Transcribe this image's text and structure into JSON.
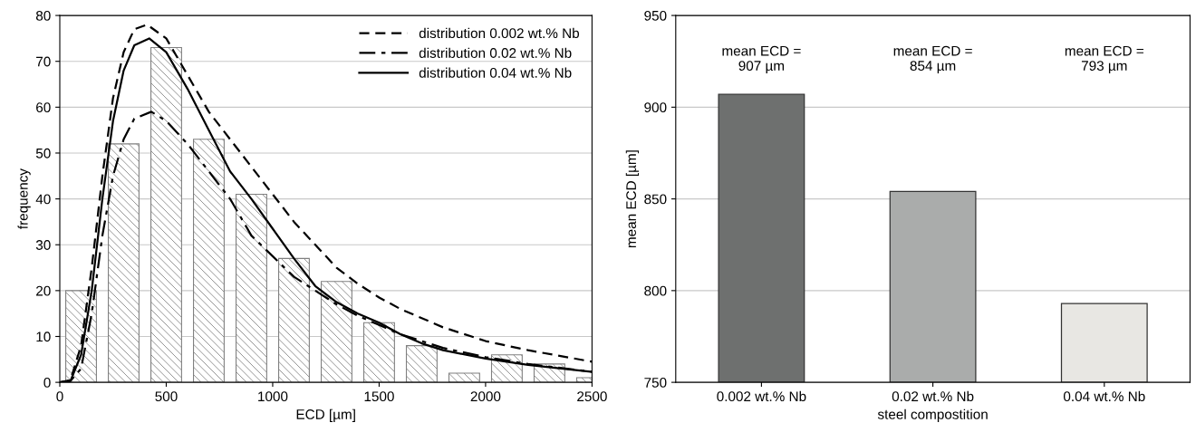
{
  "chart_data": [
    {
      "type": "histogram",
      "xlabel": "ECD [µm]",
      "ylabel": "frequency",
      "xlim": [
        0,
        2500
      ],
      "ylim": [
        0,
        80
      ],
      "xticks": [
        0,
        500,
        1000,
        1500,
        2000,
        2500
      ],
      "yticks": [
        0,
        10,
        20,
        30,
        40,
        50,
        60,
        70,
        80
      ],
      "grid": "y",
      "legend": "top right",
      "bins": [
        0,
        200,
        400,
        600,
        800,
        1000,
        1200,
        1400,
        1600,
        1800,
        2000,
        2200,
        2400,
        2600
      ],
      "series": [
        {
          "type": "histogram",
          "color": "#808080",
          "values": [
            20,
            52,
            73,
            53,
            41,
            27,
            22,
            13,
            8,
            2,
            6,
            4,
            1
          ]
        },
        {
          "type": "line",
          "name": "distribution 0.002 wt.% Nb",
          "color": "#000000",
          "line_style": "dashed",
          "x": [
            0,
            50,
            100,
            150,
            200,
            250,
            300,
            350,
            410,
            500,
            600,
            700,
            800,
            900,
            1000,
            1100,
            1200,
            1300,
            1400,
            1500,
            1600,
            1800,
            2000,
            2200,
            2500
          ],
          "values": [
            0,
            0.5,
            8,
            25,
            45,
            62,
            72,
            77,
            78,
            75,
            67,
            59,
            53,
            47,
            41,
            35,
            30,
            25,
            21.5,
            18.5,
            16,
            12,
            9,
            7,
            4.5
          ]
        },
        {
          "type": "line",
          "name": "distribution 0.02 wt.% Nb",
          "color": "#000000",
          "line_style": "dashdot",
          "x": [
            0,
            50,
            100,
            150,
            200,
            250,
            300,
            350,
            430,
            500,
            600,
            700,
            800,
            900,
            1000,
            1100,
            1200,
            1300,
            1400,
            1500,
            1600,
            1800,
            2000,
            2200,
            2500
          ],
          "values": [
            0,
            0.3,
            3,
            15,
            32,
            45,
            53,
            57.5,
            59,
            57,
            52,
            46,
            40,
            32,
            27.5,
            23,
            20,
            17,
            14.5,
            12.5,
            10.5,
            7.5,
            5.5,
            4,
            2.3
          ]
        },
        {
          "type": "line",
          "name": "distribution 0.04 wt.% Nb",
          "color": "#000000",
          "line_style": "solid",
          "x": [
            0,
            50,
            100,
            150,
            200,
            250,
            300,
            350,
            420,
            500,
            600,
            700,
            800,
            900,
            1000,
            1100,
            1200,
            1300,
            1400,
            1500,
            1600,
            1700,
            1800,
            2000,
            2200,
            2500
          ],
          "values": [
            0,
            0.3,
            6,
            20,
            40,
            57,
            68,
            73.5,
            75,
            72,
            64,
            55,
            46,
            40,
            33.5,
            27,
            21,
            17.5,
            15,
            13,
            10.5,
            8.5,
            7,
            5.2,
            3.8,
            2.3
          ]
        }
      ]
    },
    {
      "type": "bar",
      "xlabel": "steel compostition",
      "ylabel": "mean ECD [µm]",
      "categories": [
        "0.002 wt.% Nb",
        "0.02 wt.% Nb",
        "0.04 wt.% Nb"
      ],
      "values": [
        907,
        854,
        793
      ],
      "colors": [
        "#6e706f",
        "#aaacab",
        "#e8e7e3"
      ],
      "ylim": [
        750,
        950
      ],
      "yticks": [
        750,
        800,
        850,
        900,
        950
      ],
      "grid": "y",
      "annotations": [
        "mean ECD =\n907 µm",
        "mean ECD =\n854 µm",
        "mean ECD =\n793 µm"
      ]
    }
  ]
}
